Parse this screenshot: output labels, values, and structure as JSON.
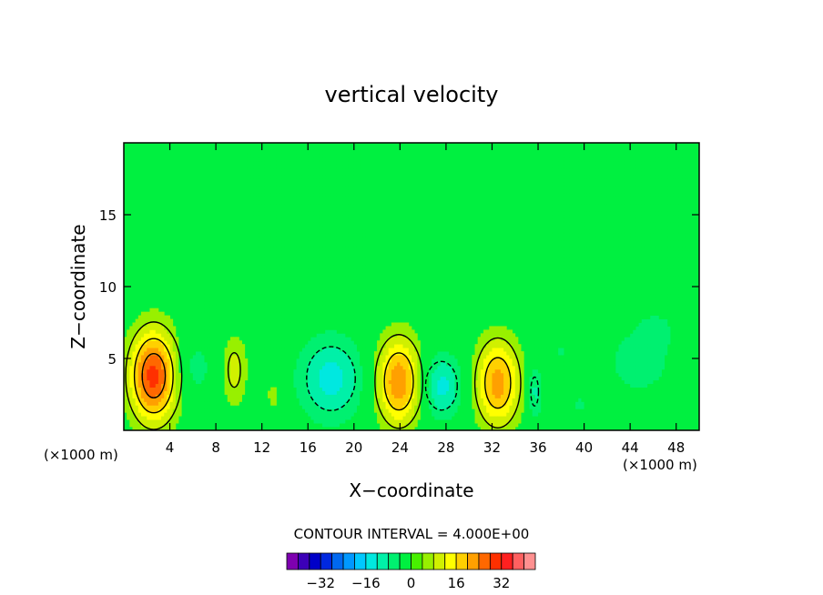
{
  "chart_data": {
    "type": "heatmap",
    "title": "vertical velocity",
    "xlabel": "X−coordinate",
    "ylabel": "Z−coordinate",
    "x_unit_left": "(×1000 m)",
    "x_unit_right": "(×1000 m)",
    "xlim": [
      0,
      50
    ],
    "ylim": [
      0,
      20
    ],
    "x_ticks": [
      4,
      8,
      12,
      16,
      20,
      24,
      28,
      32,
      36,
      40,
      44,
      48
    ],
    "x_tick_labels": [
      "4",
      "8",
      "12",
      "16",
      "20",
      "24",
      "28",
      "32",
      "36",
      "40",
      "44",
      "48"
    ],
    "y_ticks": [
      5,
      10,
      15
    ],
    "y_tick_labels": [
      "5",
      "10",
      "15"
    ],
    "background_level": 0,
    "contour_interval_text": "CONTOUR INTERVAL = 4.000E+00",
    "colorbar": {
      "colors": [
        "#7e00b0",
        "#3c00b8",
        "#0000c8",
        "#0028e0",
        "#0068f0",
        "#0098ff",
        "#00c8ff",
        "#00e8e0",
        "#00f0a8",
        "#00f070",
        "#00f040",
        "#48f000",
        "#98f000",
        "#d0f000",
        "#ffff00",
        "#ffd000",
        "#ffa000",
        "#ff6800",
        "#ff3000",
        "#ff2020",
        "#ff6060",
        "#ff9090"
      ],
      "ticks": [
        -32,
        -16,
        0,
        16,
        32
      ],
      "tick_labels": [
        "−32",
        "−16",
        "0",
        "16",
        "32"
      ]
    },
    "features": [
      {
        "x": 2.6,
        "z": 3.8,
        "sx": 1.5,
        "sz": 2.3,
        "amp": 30
      },
      {
        "x": 5.8,
        "z": 4.3,
        "sx": 1.4,
        "sz": 1.6,
        "amp": -7
      },
      {
        "x": 9.6,
        "z": 4.2,
        "sx": 0.8,
        "sz": 1.8,
        "amp": 10
      },
      {
        "x": 13.0,
        "z": 2.4,
        "sx": 0.5,
        "sz": 0.8,
        "amp": 6
      },
      {
        "x": 18.0,
        "z": 3.6,
        "sx": 2.0,
        "sz": 2.1,
        "amp": -14
      },
      {
        "x": 23.9,
        "z": 3.4,
        "sx": 1.4,
        "sz": 2.2,
        "amp": 24
      },
      {
        "x": 27.6,
        "z": 3.1,
        "sx": 1.3,
        "sz": 1.6,
        "amp": -14
      },
      {
        "x": 32.5,
        "z": 3.3,
        "sx": 1.4,
        "sz": 2.2,
        "amp": 22
      },
      {
        "x": 35.7,
        "z": 2.7,
        "sx": 0.5,
        "sz": 1.5,
        "amp": -10
      },
      {
        "x": 38.0,
        "z": 5.4,
        "sx": 0.4,
        "sz": 0.4,
        "amp": -5
      },
      {
        "x": 39.6,
        "z": 1.8,
        "sx": 0.5,
        "sz": 0.5,
        "amp": -5
      },
      {
        "x": 44.8,
        "z": 4.8,
        "sx": 2.4,
        "sz": 2.0,
        "amp": -6
      },
      {
        "x": 46.3,
        "z": 7.0,
        "sx": 1.0,
        "sz": 0.8,
        "amp": -5
      }
    ]
  }
}
